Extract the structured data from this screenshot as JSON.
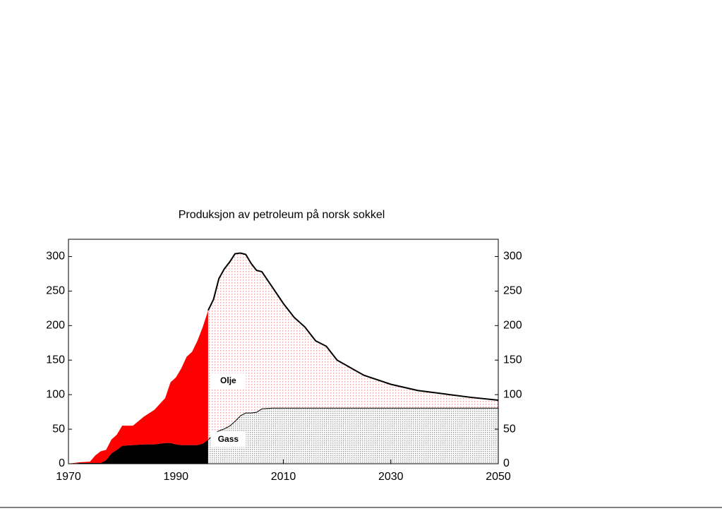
{
  "chart_data": {
    "type": "stacked_area",
    "title": "Produksjon av petroleum på norsk sokkel",
    "x": [
      1970,
      1972,
      1974,
      1975,
      1976,
      1977,
      1978,
      1979,
      1980,
      1982,
      1984,
      1986,
      1988,
      1989,
      1990,
      1991,
      1992,
      1993,
      1994,
      1995,
      1996,
      1997,
      1998,
      1999,
      2000,
      2001,
      2002,
      2003,
      2004,
      2005,
      2006,
      2008,
      2010,
      2012,
      2014,
      2016,
      2018,
      2020,
      2025,
      2030,
      2035,
      2040,
      2045,
      2050
    ],
    "forecast_start": 1996,
    "series": [
      {
        "name": "Gass",
        "color": "#000000",
        "forecast_color": "#9a9a9a",
        "values": [
          0,
          1,
          1,
          1,
          1,
          5,
          15,
          20,
          26,
          27,
          28,
          28,
          30,
          30,
          28,
          27,
          27,
          27,
          27,
          29,
          35,
          44,
          48,
          51,
          55,
          62,
          70,
          74,
          74,
          75,
          80,
          81,
          81,
          81,
          81,
          81,
          81,
          81,
          81,
          81,
          81,
          81,
          81,
          81
        ]
      },
      {
        "name": "Olje",
        "color": "#ff0000",
        "forecast_color": "#e8a0a0",
        "values": [
          0,
          1,
          2,
          11,
          17,
          15,
          20,
          22,
          29,
          28,
          40,
          50,
          65,
          88,
          97,
          111,
          128,
          135,
          151,
          169,
          187,
          194,
          220,
          231,
          237,
          242,
          235,
          229,
          216,
          205,
          198,
          174,
          151,
          131,
          117,
          97,
          89,
          69,
          47,
          34,
          25,
          20,
          15,
          11
        ]
      }
    ],
    "xlim": [
      1970,
      2050
    ],
    "xticks": [
      1970,
      1990,
      2010,
      2030,
      2050
    ],
    "ylim": [
      0,
      325
    ],
    "yticks": [
      0,
      50,
      100,
      150,
      200,
      250,
      300
    ],
    "y2lim": [
      0,
      325
    ],
    "y2ticks": [
      0,
      50,
      100,
      150,
      200,
      250,
      300
    ]
  }
}
